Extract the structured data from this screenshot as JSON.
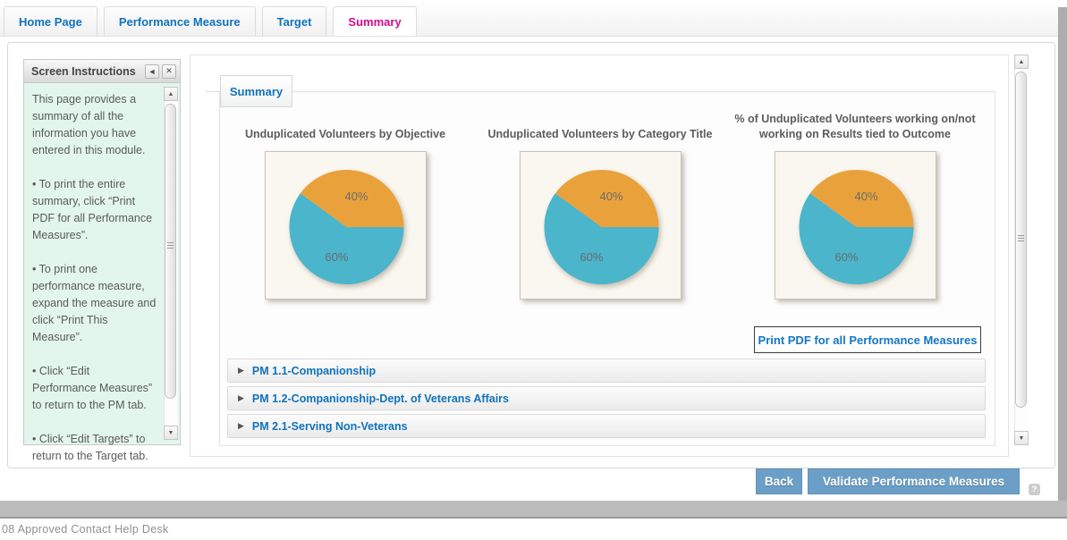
{
  "tabs": {
    "items": [
      {
        "label": "Home Page"
      },
      {
        "label": "Performance Measure"
      },
      {
        "label": "Target"
      },
      {
        "label": "Summary"
      }
    ],
    "active": "Summary",
    "active_color": "#d40a8c",
    "inactive_color": "#1173bc"
  },
  "icons": {
    "up_arrow": "▲",
    "down_arrow": "▼",
    "left_arrow": "◄",
    "close": "✕",
    "expand": "▶",
    "help": "?"
  },
  "sidebar": {
    "title": "Screen Instructions",
    "paragraphs": [
      "This page provides a summary of all the information you have entered in this module.",
      "• To print the entire summary, click “Print PDF for all Performance Measures”.",
      "• To print one performance measure, expand the measure and click “Print This Measure”.",
      "• Click “Edit Performance Measures” to return to the PM tab.",
      "• Click “Edit Targets” to return to the Target tab."
    ]
  },
  "content": {
    "subtab_label": "Summary",
    "print_all_button": "Print PDF for all Performance Measures",
    "measures": [
      {
        "label": "PM 1.1-Companionship"
      },
      {
        "label": "PM 1.2-Companionship-Dept. of Veterans Affairs"
      },
      {
        "label": "PM 2.1-Serving Non-Veterans"
      }
    ]
  },
  "chart_data": [
    {
      "type": "pie",
      "title": "Unduplicated Volunteers by Objective",
      "start_angle_deg": 0,
      "direction": "ccw",
      "slices": [
        {
          "label": "40%",
          "value": 40,
          "color": "#e9a23b"
        },
        {
          "label": "60%",
          "value": 60,
          "color": "#4ab5cb"
        }
      ]
    },
    {
      "type": "pie",
      "title": "Unduplicated Volunteers by Category Title",
      "start_angle_deg": 0,
      "direction": "ccw",
      "slices": [
        {
          "label": "40%",
          "value": 40,
          "color": "#e9a23b"
        },
        {
          "label": "60%",
          "value": 60,
          "color": "#4ab5cb"
        }
      ]
    },
    {
      "type": "pie",
      "title": "% of Unduplicated Volunteers working on/not working on Results tied to Outcome",
      "start_angle_deg": 0,
      "direction": "ccw",
      "slices": [
        {
          "label": "40%",
          "value": 40,
          "color": "#e9a23b"
        },
        {
          "label": "60%",
          "value": 60,
          "color": "#4ab5cb"
        }
      ]
    }
  ],
  "actions": {
    "back_label": "Back",
    "validate_label": "Validate Performance Measures"
  },
  "statusbar": {
    "text": "08 Approved Contact Help Desk"
  }
}
